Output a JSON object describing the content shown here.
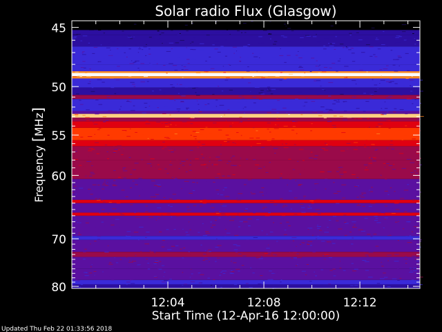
{
  "chart_data": {
    "type": "heatmap",
    "title": "Solar radio Flux (Glasgow)",
    "ylabel_prefix": "Frequency ",
    "ylabel_bracket_open": "[",
    "ylabel_unit": "MHz",
    "ylabel_bracket_close": "]",
    "xlabel": "Start Time (12-Apr-16 12:00:00)",
    "xlim_minutes": [
      0,
      14.5
    ],
    "ylim_mhz": [
      44.5,
      80.5
    ],
    "x_tick_labels": [
      "12:04",
      "12:08",
      "12:12"
    ],
    "x_tick_minutes": [
      4,
      8,
      12
    ],
    "y_tick_labels": [
      "45",
      "50",
      "55",
      "60",
      "70",
      "80"
    ],
    "y_tick_values": [
      45,
      50,
      55,
      60,
      70,
      80
    ],
    "y_scale": "reciprocal",
    "colormap": [
      "#000000",
      "#1a0a5a",
      "#2c0fa0",
      "#3a2ad8",
      "#5a10a0",
      "#9a0a4a",
      "#e00010",
      "#ff3a00",
      "#ff8a20",
      "#ffd080",
      "#ffffff"
    ],
    "bands": [
      {
        "from_mhz": 44.5,
        "to_mhz": 45.2,
        "level": 0.0
      },
      {
        "from_mhz": 45.2,
        "to_mhz": 45.6,
        "level": 0.15
      },
      {
        "from_mhz": 45.6,
        "to_mhz": 46.5,
        "level": 0.22
      },
      {
        "from_mhz": 46.5,
        "to_mhz": 48.0,
        "level": 0.28
      },
      {
        "from_mhz": 48.0,
        "to_mhz": 48.6,
        "level": 0.3
      },
      {
        "from_mhz": 48.6,
        "to_mhz": 48.75,
        "level": 0.75
      },
      {
        "from_mhz": 48.75,
        "to_mhz": 49.05,
        "level": 1.0
      },
      {
        "from_mhz": 49.05,
        "to_mhz": 49.25,
        "level": 0.78
      },
      {
        "from_mhz": 49.25,
        "to_mhz": 50.1,
        "level": 0.3
      },
      {
        "from_mhz": 50.1,
        "to_mhz": 50.8,
        "level": 0.2
      },
      {
        "from_mhz": 50.8,
        "to_mhz": 51.2,
        "level": 0.45
      },
      {
        "from_mhz": 51.2,
        "to_mhz": 52.4,
        "level": 0.28
      },
      {
        "from_mhz": 52.4,
        "to_mhz": 52.7,
        "level": 0.4
      },
      {
        "from_mhz": 52.7,
        "to_mhz": 53.1,
        "level": 0.85
      },
      {
        "from_mhz": 53.1,
        "to_mhz": 53.5,
        "level": 0.5
      },
      {
        "from_mhz": 53.5,
        "to_mhz": 54.2,
        "level": 0.6
      },
      {
        "from_mhz": 54.2,
        "to_mhz": 55.6,
        "level": 0.66
      },
      {
        "from_mhz": 55.6,
        "to_mhz": 56.3,
        "level": 0.58
      },
      {
        "from_mhz": 56.3,
        "to_mhz": 58.0,
        "level": 0.5
      },
      {
        "from_mhz": 58.0,
        "to_mhz": 60.5,
        "level": 0.47
      },
      {
        "from_mhz": 60.5,
        "to_mhz": 63.5,
        "level": 0.44
      },
      {
        "from_mhz": 63.5,
        "to_mhz": 64.0,
        "level": 0.6
      },
      {
        "from_mhz": 64.0,
        "to_mhz": 65.5,
        "level": 0.42
      },
      {
        "from_mhz": 65.5,
        "to_mhz": 66.0,
        "level": 0.55
      },
      {
        "from_mhz": 66.0,
        "to_mhz": 69.5,
        "level": 0.4
      },
      {
        "from_mhz": 69.5,
        "to_mhz": 70.2,
        "level": 0.33
      },
      {
        "from_mhz": 70.2,
        "to_mhz": 72.5,
        "level": 0.4
      },
      {
        "from_mhz": 72.5,
        "to_mhz": 73.5,
        "level": 0.46
      },
      {
        "from_mhz": 73.5,
        "to_mhz": 76.0,
        "level": 0.41
      },
      {
        "from_mhz": 76.0,
        "to_mhz": 78.5,
        "level": 0.38
      },
      {
        "from_mhz": 78.5,
        "to_mhz": 79.5,
        "level": 0.3
      },
      {
        "from_mhz": 79.5,
        "to_mhz": 80.5,
        "level": 0.24
      }
    ],
    "grid": false
  },
  "footer": {
    "updated": "Updated Thu Feb 22 01:33:56 2018"
  }
}
